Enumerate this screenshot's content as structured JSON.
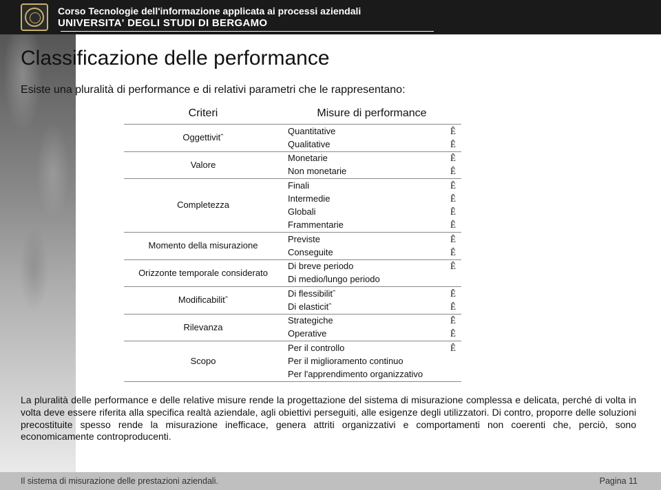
{
  "header": {
    "course": "Corso Tecnologie dell'informazione applicata ai processi aziendali",
    "university": "UNIVERSITA' DEGLI STUDI DI BERGAMO"
  },
  "title": "Classificazione delle performance",
  "intro": "Esiste una pluralità di performance e di relativi parametri che le rappresentano:",
  "table": {
    "col_criteri": "Criteri",
    "col_misure": "Misure di performance",
    "rows": [
      {
        "criterio": "Oggettivitˆ",
        "misure": [
          "Quantitative",
          "Qualitative"
        ],
        "marks": [
          "Ê",
          "Ê"
        ]
      },
      {
        "criterio": "Valore",
        "misure": [
          "Monetarie",
          "Non monetarie"
        ],
        "marks": [
          "Ê",
          "Ê"
        ]
      },
      {
        "criterio": "Completezza",
        "misure": [
          "Finali",
          "Intermedie",
          "Globali",
          "Frammentarie"
        ],
        "marks": [
          "Ê",
          "Ê",
          "Ê",
          "Ê"
        ]
      },
      {
        "criterio": "Momento della misurazione",
        "misure": [
          "Previste",
          "Conseguite"
        ],
        "marks": [
          "Ê",
          "Ê"
        ]
      },
      {
        "criterio": "Orizzonte temporale considerato",
        "misure": [
          "Di breve periodo",
          "Di medio/lungo periodo"
        ],
        "marks": [
          "Ê",
          ""
        ]
      },
      {
        "criterio": "Modificabilitˆ",
        "misure": [
          "Di flessibilitˆ",
          "Di elasticitˆ"
        ],
        "marks": [
          "Ê",
          "Ê"
        ]
      },
      {
        "criterio": "Rilevanza",
        "misure": [
          "Strategiche",
          "Operative"
        ],
        "marks": [
          "Ê",
          "Ê"
        ]
      },
      {
        "criterio": "Scopo",
        "misure": [
          "Per il controllo",
          "Per il miglioramento continuo",
          "Per l'apprendimento organizzativo"
        ],
        "marks": [
          "Ê",
          "",
          ""
        ]
      }
    ]
  },
  "body": "La pluralità delle performance e delle relative misure rende la progettazione del sistema di misurazione complessa e delicata, perché di volta in volta deve essere riferita alla specifica realtà aziendale, agli obiettivi perseguiti, alle esigenze degli utilizzatori. Di contro, proporre delle soluzioni precostituite spesso rende la misurazione inefficace, genera attriti organizzativi e comportamenti non coerenti che, perciò, sono economicamente controproducenti.",
  "footer": {
    "left": "Il sistema di misurazione delle prestazioni aziendali.",
    "right": "Pagina 11"
  },
  "colors": {
    "header_bg": "#1a1a1a",
    "seal_border": "#c9b26a",
    "footer_bg": "#bfbfbf",
    "rule": "#888888"
  }
}
